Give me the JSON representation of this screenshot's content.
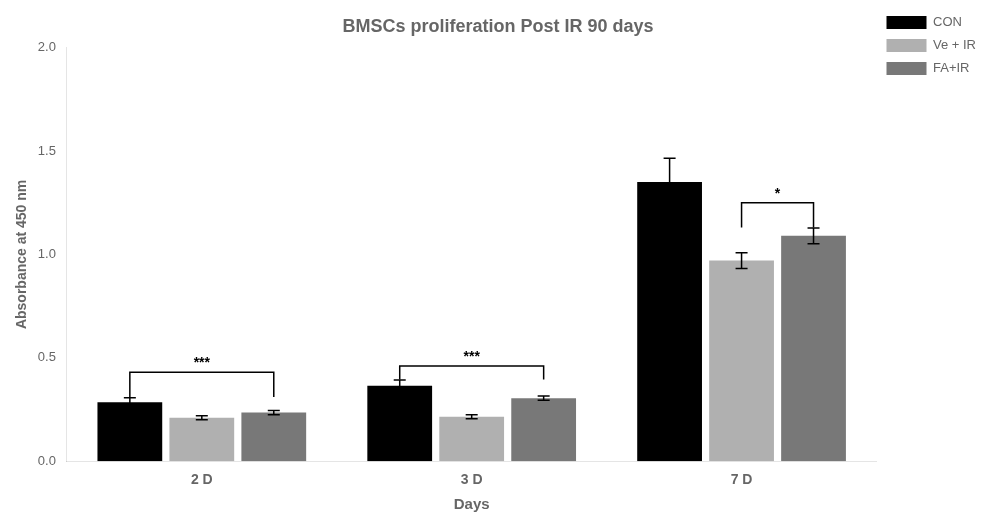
{
  "chart_data": {
    "type": "bar",
    "title": "BMSCs proliferation Post IR 90 days",
    "xlabel": "Days",
    "ylabel": "Absorbance at 450 nm",
    "categories": [
      "2 D",
      "3 D",
      "7 D"
    ],
    "series": [
      {
        "name": "CON",
        "color": "#000000",
        "values": [
          0.285,
          0.365,
          1.35
        ],
        "errors": [
          0.022,
          0.028,
          0.115
        ]
      },
      {
        "name": "Ve + IR",
        "color": "#b0b0b0",
        "values": [
          0.21,
          0.215,
          0.97
        ],
        "errors": [
          0.01,
          0.01,
          0.038
        ]
      },
      {
        "name": "FA+IR",
        "color": "#787878",
        "values": [
          0.235,
          0.305,
          1.09
        ],
        "errors": [
          0.01,
          0.01,
          0.038
        ]
      }
    ],
    "ylim": [
      0,
      2.0
    ],
    "yticks": [
      {
        "value": 0.0,
        "label": "0.0"
      },
      0.5,
      {
        "value": 1.0,
        "label": "1.0"
      },
      1.5,
      {
        "value": 2.0,
        "label": "2.0"
      }
    ],
    "grid": false,
    "legend": "upper right",
    "annotations": [
      {
        "text": "***",
        "category": "2 D",
        "series": [
          "CON",
          "FA+IR"
        ],
        "y_base": 0.31,
        "y_top": 0.43
      },
      {
        "text": "***",
        "category": "3 D",
        "series": [
          "CON",
          "FA+IR"
        ],
        "y_base": 0.395,
        "y_top": 0.46
      },
      {
        "text": "*",
        "category": "7 D",
        "series": [
          "Ve + IR",
          "FA+IR"
        ],
        "y_base": 1.13,
        "y_top": 1.25
      }
    ]
  }
}
